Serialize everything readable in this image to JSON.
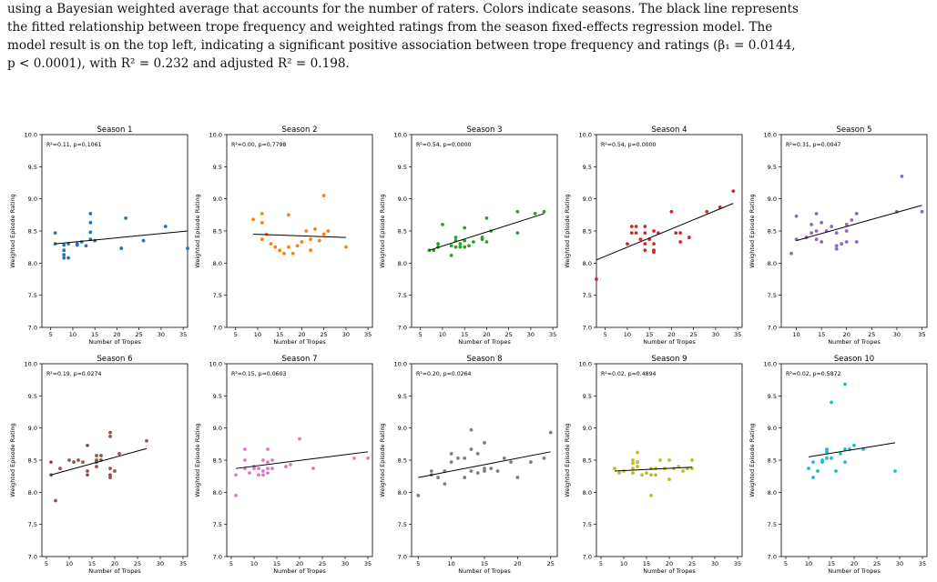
{
  "caption": {
    "line1": "using a Bayesian weighted average that accounts for the number of raters. Colors indicate seasons. The black line represents",
    "line2": "the fitted relationship between trope frequency and weighted ratings from the season fixed-effects regression model. The",
    "line3": "model result is on the top left, indicating a significant positive association between trope frequency and ratings (β₁ = 0.0144,",
    "line4": "p < 0.0001), with R² = 0.232 and adjusted R² = 0.198."
  },
  "chart_data": [
    {
      "type": "scatter",
      "title": "Season 1",
      "xlabel": "Number of Tropes",
      "ylabel": "Weighted Episode Rating",
      "xlim": [
        3,
        36
      ],
      "ylim": [
        7.0,
        10.0
      ],
      "color": "#1f77b4",
      "annotation": "R²=0.11, p=0.1061",
      "points": [
        [
          6,
          8.47
        ],
        [
          6,
          8.3
        ],
        [
          8,
          8.28
        ],
        [
          8,
          8.2
        ],
        [
          8,
          8.13
        ],
        [
          8,
          8.08
        ],
        [
          9,
          8.3
        ],
        [
          9,
          8.08
        ],
        [
          11,
          8.3
        ],
        [
          11,
          8.28
        ],
        [
          12,
          8.33
        ],
        [
          13,
          8.27
        ],
        [
          14,
          8.77
        ],
        [
          14,
          8.63
        ],
        [
          14,
          8.48
        ],
        [
          14,
          8.37
        ],
        [
          15,
          8.35
        ],
        [
          21,
          8.23
        ],
        [
          22,
          8.7
        ],
        [
          26,
          8.35
        ],
        [
          31,
          8.57
        ],
        [
          36,
          8.23
        ]
      ],
      "fit": [
        [
          6,
          8.3
        ],
        [
          36,
          8.5
        ]
      ]
    },
    {
      "type": "scatter",
      "title": "Season 2",
      "xlabel": "Number of Tropes",
      "ylabel": "Weighted Episode Rating",
      "xlim": [
        3,
        36
      ],
      "ylim": [
        7.0,
        10.0
      ],
      "color": "#ff7f0e",
      "annotation": "R²=0.00, p=0.7798",
      "points": [
        [
          9,
          8.68
        ],
        [
          11,
          8.77
        ],
        [
          11,
          8.63
        ],
        [
          11,
          8.37
        ],
        [
          12,
          8.45
        ],
        [
          13,
          8.3
        ],
        [
          14,
          8.25
        ],
        [
          15,
          8.2
        ],
        [
          16,
          8.15
        ],
        [
          17,
          8.75
        ],
        [
          17,
          8.25
        ],
        [
          18,
          8.15
        ],
        [
          19,
          8.27
        ],
        [
          20,
          8.33
        ],
        [
          21,
          8.5
        ],
        [
          22,
          8.2
        ],
        [
          22,
          8.37
        ],
        [
          23,
          8.53
        ],
        [
          24,
          8.35
        ],
        [
          25,
          9.05
        ],
        [
          25,
          8.45
        ],
        [
          26,
          8.5
        ],
        [
          30,
          8.25
        ]
      ],
      "fit": [
        [
          9,
          8.45
        ],
        [
          30,
          8.4
        ]
      ]
    },
    {
      "type": "scatter",
      "title": "Season 3",
      "xlabel": "Number of Tropes",
      "ylabel": "Weighted Episode Rating",
      "xlim": [
        3,
        36
      ],
      "ylim": [
        7.0,
        10.0
      ],
      "color": "#2ca02c",
      "annotation": "R²=0.54, p=0.0000",
      "points": [
        [
          7,
          8.2
        ],
        [
          8,
          8.2
        ],
        [
          9,
          8.25
        ],
        [
          9,
          8.3
        ],
        [
          10,
          8.6
        ],
        [
          12,
          8.27
        ],
        [
          12,
          8.12
        ],
        [
          13,
          8.4
        ],
        [
          13,
          8.35
        ],
        [
          13,
          8.25
        ],
        [
          14,
          8.3
        ],
        [
          14,
          8.25
        ],
        [
          15,
          8.55
        ],
        [
          15,
          8.35
        ],
        [
          15,
          8.25
        ],
        [
          16,
          8.27
        ],
        [
          17,
          8.33
        ],
        [
          19,
          8.37
        ],
        [
          19,
          8.4
        ],
        [
          20,
          8.7
        ],
        [
          20,
          8.33
        ],
        [
          21,
          8.5
        ],
        [
          27,
          8.8
        ],
        [
          27,
          8.47
        ],
        [
          31,
          8.77
        ],
        [
          33,
          8.8
        ]
      ],
      "fit": [
        [
          7,
          8.2
        ],
        [
          33,
          8.77
        ]
      ]
    },
    {
      "type": "scatter",
      "title": "Season 4",
      "xlabel": "Number of Tropes",
      "ylabel": "Weighted Episode Rating",
      "xlim": [
        3,
        36
      ],
      "ylim": [
        7.0,
        10.0
      ],
      "color": "#d62728",
      "annotation": "R²=0.54, p=0.0000",
      "points": [
        [
          3,
          7.75
        ],
        [
          10,
          8.3
        ],
        [
          11,
          8.57
        ],
        [
          11,
          8.47
        ],
        [
          12,
          8.57
        ],
        [
          12,
          8.47
        ],
        [
          13,
          8.37
        ],
        [
          14,
          8.57
        ],
        [
          14,
          8.47
        ],
        [
          14,
          8.3
        ],
        [
          14,
          8.2
        ],
        [
          15,
          8.37
        ],
        [
          16,
          8.5
        ],
        [
          16,
          8.3
        ],
        [
          16,
          8.2
        ],
        [
          16,
          8.17
        ],
        [
          17,
          8.47
        ],
        [
          20,
          8.8
        ],
        [
          21,
          8.47
        ],
        [
          22,
          8.47
        ],
        [
          22,
          8.33
        ],
        [
          24,
          8.4
        ],
        [
          28,
          8.8
        ],
        [
          31,
          8.87
        ],
        [
          34,
          9.12
        ]
      ],
      "fit": [
        [
          3,
          8.05
        ],
        [
          34,
          8.93
        ]
      ]
    },
    {
      "type": "scatter",
      "title": "Season 5",
      "xlabel": "Number of Tropes",
      "ylabel": "Weighted Episode Rating",
      "xlim": [
        7,
        36
      ],
      "ylim": [
        7.0,
        10.0
      ],
      "color": "#9467bd",
      "annotation": "R²=0.31, p=0.0047",
      "points": [
        [
          9,
          8.15
        ],
        [
          10,
          8.73
        ],
        [
          10,
          8.37
        ],
        [
          12,
          8.4
        ],
        [
          13,
          8.6
        ],
        [
          13,
          8.47
        ],
        [
          14,
          8.77
        ],
        [
          14,
          8.5
        ],
        [
          14,
          8.37
        ],
        [
          15,
          8.63
        ],
        [
          15,
          8.33
        ],
        [
          16,
          8.5
        ],
        [
          17,
          8.57
        ],
        [
          18,
          8.47
        ],
        [
          18,
          8.27
        ],
        [
          18,
          8.22
        ],
        [
          19,
          8.3
        ],
        [
          20,
          8.6
        ],
        [
          20,
          8.5
        ],
        [
          20,
          8.33
        ],
        [
          21,
          8.67
        ],
        [
          22,
          8.77
        ],
        [
          22,
          8.33
        ],
        [
          30,
          8.8
        ],
        [
          31,
          9.35
        ],
        [
          35,
          8.8
        ]
      ],
      "fit": [
        [
          10,
          8.35
        ],
        [
          35,
          8.9
        ]
      ]
    },
    {
      "type": "scatter",
      "title": "Season 6",
      "xlabel": "Number of Tropes",
      "ylabel": "Weighted Episode Rating",
      "xlim": [
        4,
        36
      ],
      "ylim": [
        7.0,
        10.0
      ],
      "color": "#8c564b",
      "annotation": "R²=0.19, p=0.0274",
      "points": [
        [
          6,
          8.47
        ],
        [
          6,
          8.27
        ],
        [
          7,
          7.87
        ],
        [
          8,
          8.37
        ],
        [
          10,
          8.5
        ],
        [
          11,
          8.47
        ],
        [
          12,
          8.5
        ],
        [
          13,
          8.47
        ],
        [
          14,
          8.73
        ],
        [
          14,
          8.33
        ],
        [
          14,
          8.27
        ],
        [
          16,
          8.57
        ],
        [
          16,
          8.5
        ],
        [
          16,
          8.47
        ],
        [
          16,
          8.4
        ],
        [
          17,
          8.57
        ],
        [
          17,
          8.5
        ],
        [
          19,
          8.93
        ],
        [
          19,
          8.87
        ],
        [
          19,
          8.37
        ],
        [
          19,
          8.27
        ],
        [
          19,
          8.23
        ],
        [
          20,
          8.33
        ],
        [
          21,
          8.6
        ],
        [
          27,
          8.8
        ]
      ],
      "fit": [
        [
          6,
          8.27
        ],
        [
          27,
          8.68
        ]
      ]
    },
    {
      "type": "scatter",
      "title": "Season 7",
      "xlabel": "Number of Tropes",
      "ylabel": "Weighted Episode Rating",
      "xlim": [
        4,
        36
      ],
      "ylim": [
        7.0,
        10.0
      ],
      "color": "#e377c2",
      "annotation": "R²=0.15, p=0.0603",
      "points": [
        [
          6,
          7.95
        ],
        [
          6,
          8.27
        ],
        [
          8,
          8.67
        ],
        [
          8,
          8.5
        ],
        [
          8,
          8.37
        ],
        [
          9,
          8.3
        ],
        [
          10,
          8.4
        ],
        [
          10,
          8.37
        ],
        [
          11,
          8.37
        ],
        [
          11,
          8.27
        ],
        [
          12,
          8.5
        ],
        [
          12,
          8.33
        ],
        [
          12,
          8.27
        ],
        [
          13,
          8.67
        ],
        [
          13,
          8.47
        ],
        [
          13,
          8.37
        ],
        [
          13,
          8.3
        ],
        [
          14,
          8.37
        ],
        [
          14,
          8.5
        ],
        [
          17,
          8.4
        ],
        [
          18,
          8.43
        ],
        [
          20,
          8.83
        ],
        [
          23,
          8.37
        ],
        [
          32,
          8.53
        ],
        [
          35,
          8.53
        ]
      ],
      "fit": [
        [
          6,
          8.37
        ],
        [
          35,
          8.63
        ]
      ]
    },
    {
      "type": "scatter",
      "title": "Season 8",
      "xlabel": "Number of Tropes",
      "ylabel": "Weighted Episode Rating",
      "xlim": [
        4,
        26
      ],
      "ylim": [
        7.0,
        10.0
      ],
      "color": "#7f7f7f",
      "annotation": "R²=0.20, p=0.0264",
      "points": [
        [
          5,
          7.95
        ],
        [
          7,
          8.33
        ],
        [
          7,
          8.27
        ],
        [
          8,
          8.23
        ],
        [
          9,
          8.33
        ],
        [
          9,
          8.13
        ],
        [
          10,
          8.6
        ],
        [
          10,
          8.47
        ],
        [
          11,
          8.53
        ],
        [
          12,
          8.53
        ],
        [
          12,
          8.23
        ],
        [
          13,
          8.97
        ],
        [
          13,
          8.67
        ],
        [
          13,
          8.33
        ],
        [
          14,
          8.6
        ],
        [
          14,
          8.3
        ],
        [
          15,
          8.77
        ],
        [
          15,
          8.37
        ],
        [
          15,
          8.33
        ],
        [
          16,
          8.37
        ],
        [
          17,
          8.33
        ],
        [
          18,
          8.53
        ],
        [
          19,
          8.47
        ],
        [
          20,
          8.23
        ],
        [
          22,
          8.47
        ],
        [
          24,
          8.53
        ],
        [
          25,
          8.93
        ]
      ],
      "fit": [
        [
          5,
          8.23
        ],
        [
          25,
          8.63
        ]
      ]
    },
    {
      "type": "scatter",
      "title": "Season 9",
      "xlabel": "Number of Tropes",
      "ylabel": "Weighted Episode Rating",
      "xlim": [
        4,
        36
      ],
      "ylim": [
        7.0,
        10.0
      ],
      "color": "#bcbd22",
      "annotation": "R²=0.02, p=0.4894",
      "points": [
        [
          8,
          8.37
        ],
        [
          9,
          8.3
        ],
        [
          10,
          8.33
        ],
        [
          12,
          8.5
        ],
        [
          12,
          8.45
        ],
        [
          12,
          8.37
        ],
        [
          12,
          8.3
        ],
        [
          13,
          8.62
        ],
        [
          13,
          8.47
        ],
        [
          13,
          8.4
        ],
        [
          14,
          8.27
        ],
        [
          15,
          8.3
        ],
        [
          16,
          7.95
        ],
        [
          16,
          8.27
        ],
        [
          16,
          8.37
        ],
        [
          17,
          8.37
        ],
        [
          17,
          8.27
        ],
        [
          18,
          8.5
        ],
        [
          19,
          8.37
        ],
        [
          20,
          8.2
        ],
        [
          20,
          8.5
        ],
        [
          21,
          8.37
        ],
        [
          22,
          8.4
        ],
        [
          23,
          8.33
        ],
        [
          24,
          8.37
        ],
        [
          25,
          8.37
        ],
        [
          25,
          8.5
        ]
      ],
      "fit": [
        [
          8,
          8.33
        ],
        [
          25,
          8.39
        ]
      ]
    },
    {
      "type": "scatter",
      "title": "Season 10",
      "xlabel": "Number of Tropes",
      "ylabel": "Weighted Episode Rating",
      "xlim": [
        4,
        36
      ],
      "ylim": [
        7.0,
        10.0
      ],
      "color": "#17becf",
      "annotation": "R²=0.02, p=0.5872",
      "points": [
        [
          10,
          8.37
        ],
        [
          11,
          8.23
        ],
        [
          11,
          8.47
        ],
        [
          12,
          8.33
        ],
        [
          13,
          8.5
        ],
        [
          13,
          8.47
        ],
        [
          14,
          8.53
        ],
        [
          14,
          8.63
        ],
        [
          14,
          8.67
        ],
        [
          15,
          8.53
        ],
        [
          15,
          9.4
        ],
        [
          16,
          8.33
        ],
        [
          17,
          8.6
        ],
        [
          18,
          8.47
        ],
        [
          18,
          8.67
        ],
        [
          18,
          9.68
        ],
        [
          19,
          8.67
        ],
        [
          20,
          8.73
        ],
        [
          22,
          8.67
        ],
        [
          29,
          8.33
        ]
      ],
      "fit": [
        [
          10,
          8.55
        ],
        [
          29,
          8.77
        ]
      ]
    }
  ]
}
